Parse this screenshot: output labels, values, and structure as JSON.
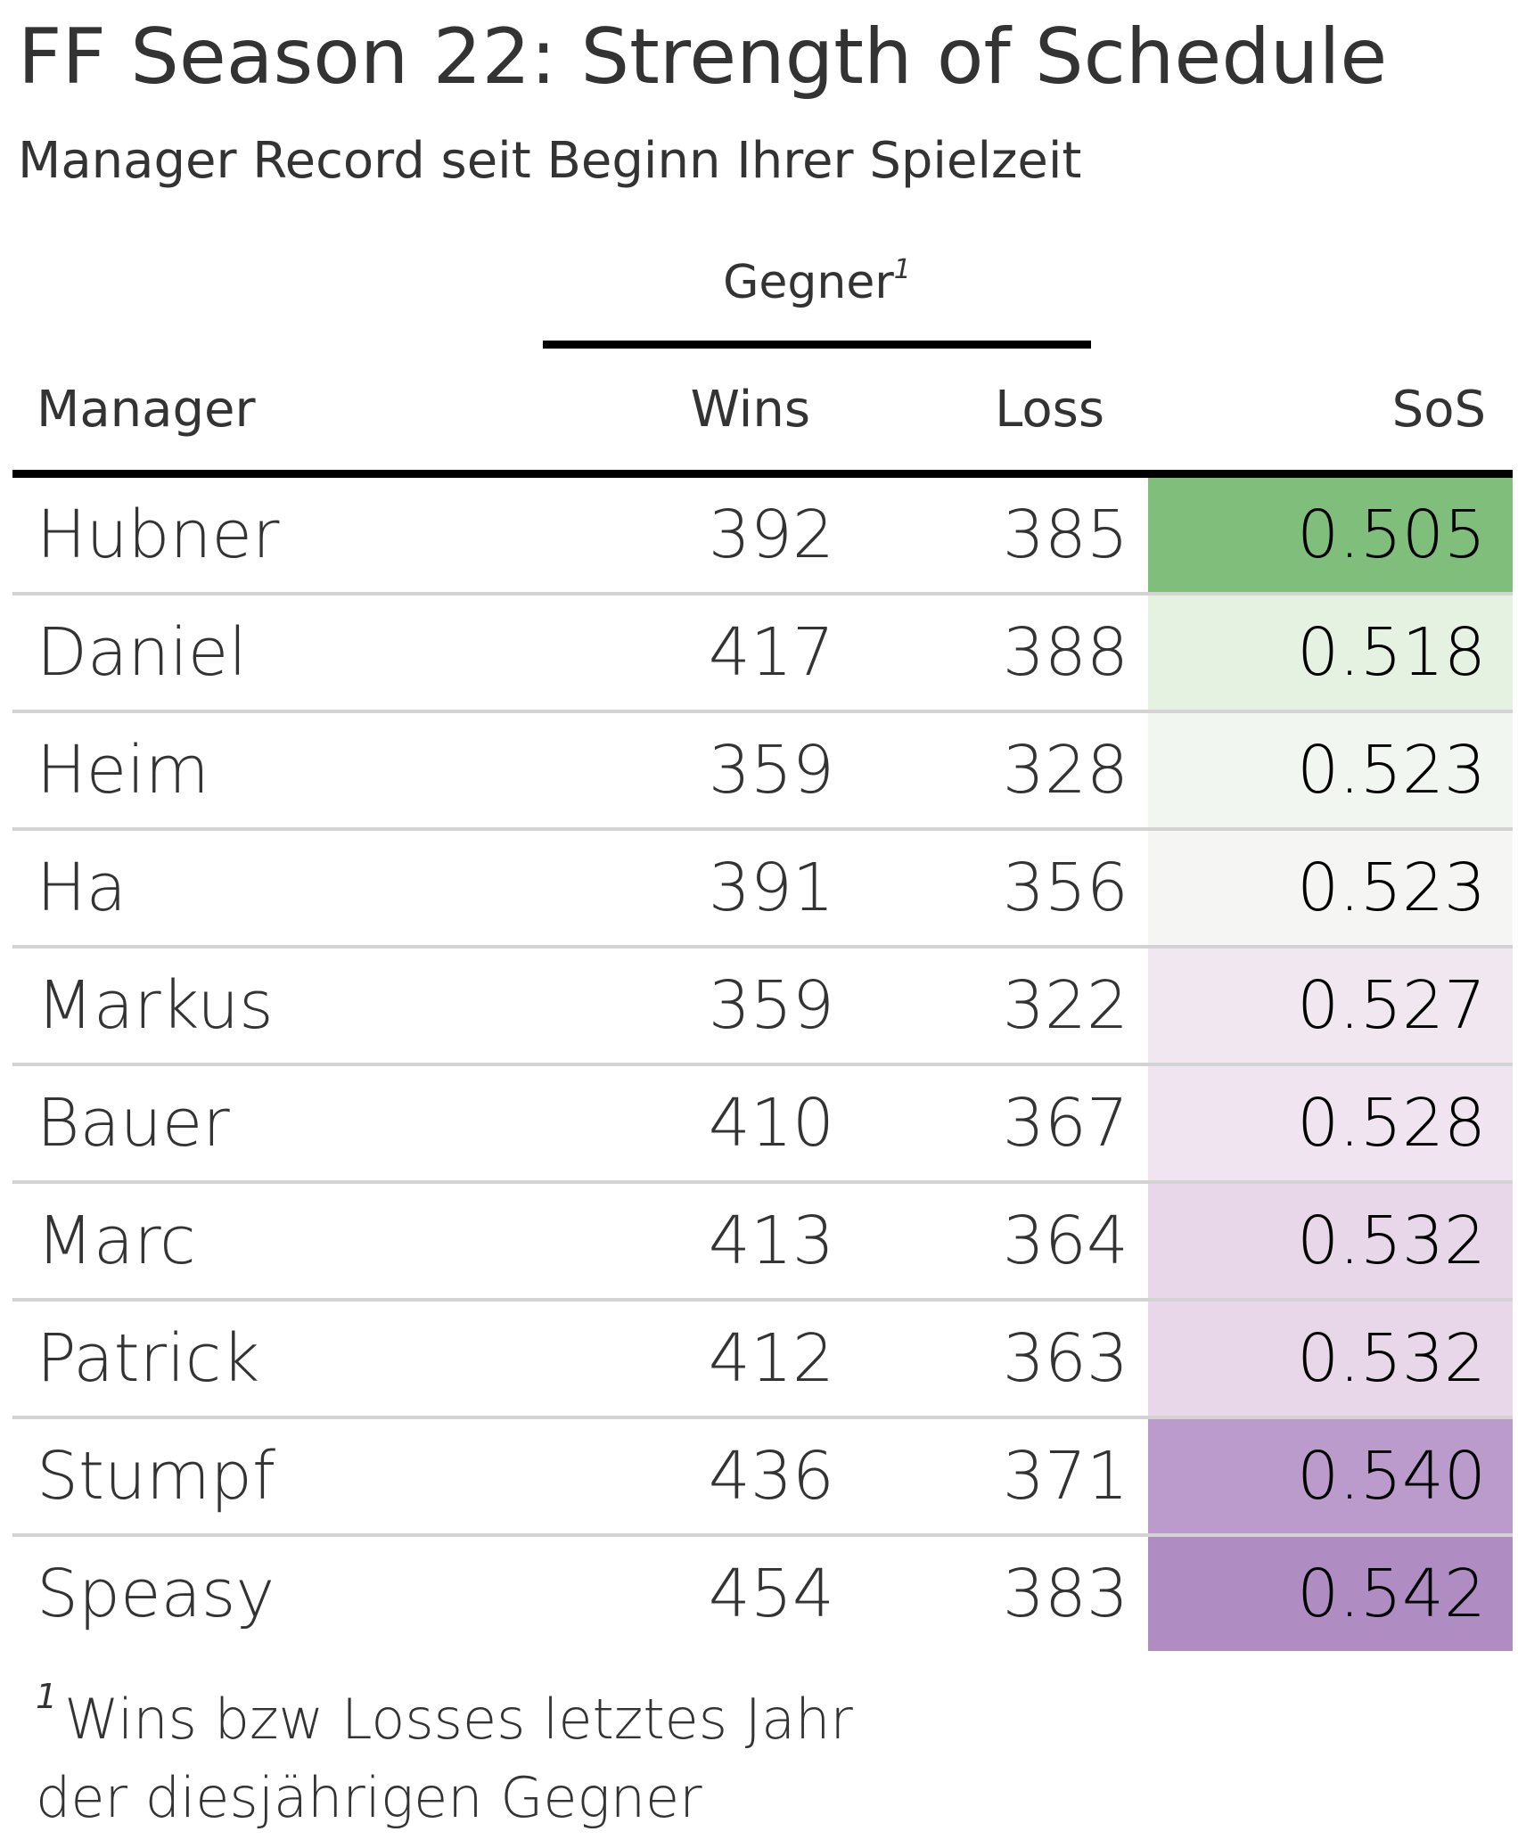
{
  "header": {
    "title": "FF Season 22: Strength of Schedule",
    "subtitle": "Manager Record seit Beginn Ihrer Spielzeit"
  },
  "table": {
    "spanner": {
      "label": "Gegner",
      "footnote_mark": "1"
    },
    "columns": {
      "manager": "Manager",
      "wins": "Wins",
      "loss": "Loss",
      "sos": "SoS"
    }
  },
  "footnote": {
    "mark": "1",
    "line1": "Wins bzw Losses letztes Jahr",
    "line2": "der diesjährigen Gegner"
  },
  "colors": {
    "sos_low": "#7fbf7b",
    "sos_high": "#af8dc3"
  },
  "chart_data": {
    "type": "table",
    "title": "FF Season 22: Strength of Schedule",
    "subtitle": "Manager Record seit Beginn Ihrer Spielzeit",
    "columns": [
      "Manager",
      "Wins",
      "Loss",
      "SoS"
    ],
    "rows": [
      {
        "manager": "Hubner",
        "wins": 392,
        "loss": 385,
        "sos": "0.505",
        "fill": "#7fbf7b"
      },
      {
        "manager": "Daniel",
        "wins": 417,
        "loss": 388,
        "sos": "0.518",
        "fill": "#e5f1e1"
      },
      {
        "manager": "Heim",
        "wins": 359,
        "loss": 328,
        "sos": "0.523",
        "fill": "#f2f6f0"
      },
      {
        "manager": "Ha",
        "wins": 391,
        "loss": 356,
        "sos": "0.523",
        "fill": "#f5f5f3"
      },
      {
        "manager": "Markus",
        "wins": 359,
        "loss": 322,
        "sos": "0.527",
        "fill": "#f0e7f1"
      },
      {
        "manager": "Bauer",
        "wins": 410,
        "loss": 367,
        "sos": "0.528",
        "fill": "#efe4ef"
      },
      {
        "manager": "Marc",
        "wins": 413,
        "loss": 364,
        "sos": "0.532",
        "fill": "#e8d7e9"
      },
      {
        "manager": "Patrick",
        "wins": 412,
        "loss": 363,
        "sos": "0.532",
        "fill": "#e8d7e9"
      },
      {
        "manager": "Stumpf",
        "wins": 436,
        "loss": 371,
        "sos": "0.540",
        "fill": "#bb9bcb"
      },
      {
        "manager": "Speasy",
        "wins": 454,
        "loss": 383,
        "sos": "0.542",
        "fill": "#af8dc3"
      }
    ]
  }
}
